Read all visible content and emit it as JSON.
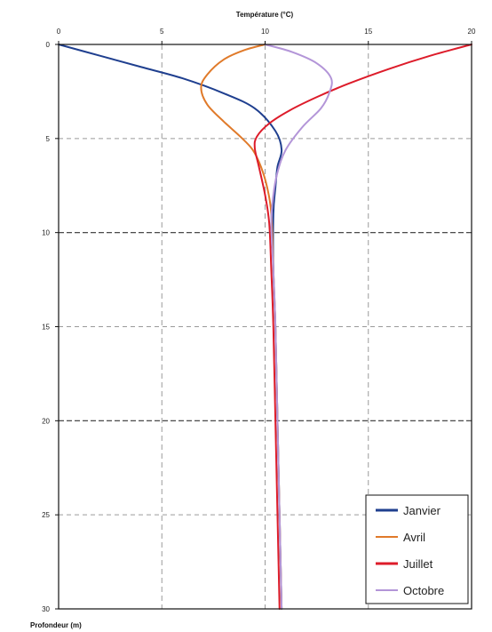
{
  "chart_data": {
    "type": "line",
    "xlabel": "Température (°C)",
    "ylabel": "Profondeur (m)",
    "xlim": [
      0,
      20
    ],
    "ylim": [
      0,
      30
    ],
    "y_inverted": true,
    "x_axis_position": "top",
    "x_ticks": [
      0,
      5,
      10,
      15,
      20
    ],
    "y_ticks": [
      0,
      5,
      10,
      15,
      20,
      25,
      30
    ],
    "grid": true,
    "legend_position": "bottom-right",
    "series": [
      {
        "name": "Janvier",
        "color": "#1f3f8f",
        "points": [
          [
            0,
            0
          ],
          [
            2,
            0.6
          ],
          [
            4,
            1.2
          ],
          [
            6,
            1.8
          ],
          [
            8,
            2.6
          ],
          [
            9.5,
            3.4
          ],
          [
            10.5,
            4.6
          ],
          [
            10.8,
            5.6
          ],
          [
            10.6,
            6.5
          ],
          [
            10.5,
            7.6
          ],
          [
            10.4,
            9
          ],
          [
            10.4,
            12
          ],
          [
            10.5,
            15
          ],
          [
            10.6,
            20
          ],
          [
            10.7,
            25
          ],
          [
            10.8,
            30
          ]
        ]
      },
      {
        "name": "Avril",
        "color": "#e07a2a",
        "points": [
          [
            10,
            0
          ],
          [
            9,
            0.3
          ],
          [
            8,
            0.8
          ],
          [
            7.2,
            1.6
          ],
          [
            6.9,
            2.3
          ],
          [
            7.2,
            3.2
          ],
          [
            8,
            4.1
          ],
          [
            8.8,
            4.9
          ],
          [
            9.4,
            5.6
          ],
          [
            9.8,
            6.5
          ],
          [
            10.1,
            7.6
          ],
          [
            10.3,
            9
          ],
          [
            10.4,
            12
          ],
          [
            10.5,
            15
          ],
          [
            10.6,
            20
          ],
          [
            10.7,
            25
          ],
          [
            10.8,
            30
          ]
        ]
      },
      {
        "name": "Juillet",
        "color": "#dd1c2a",
        "points": [
          [
            20,
            0
          ],
          [
            18,
            0.6
          ],
          [
            16,
            1.3
          ],
          [
            14,
            2.1
          ],
          [
            12.5,
            2.8
          ],
          [
            11.2,
            3.5
          ],
          [
            10.2,
            4.2
          ],
          [
            9.6,
            4.9
          ],
          [
            9.5,
            5.5
          ],
          [
            9.7,
            6.5
          ],
          [
            10,
            8
          ],
          [
            10.2,
            9.5
          ],
          [
            10.3,
            12
          ],
          [
            10.4,
            15
          ],
          [
            10.5,
            20
          ],
          [
            10.6,
            25
          ],
          [
            10.7,
            30
          ]
        ]
      },
      {
        "name": "Octobre",
        "color": "#b395d8",
        "points": [
          [
            10,
            0
          ],
          [
            11.3,
            0.4
          ],
          [
            12.5,
            1
          ],
          [
            13.2,
            1.8
          ],
          [
            13.1,
            2.6
          ],
          [
            12.7,
            3.4
          ],
          [
            11.8,
            4.4
          ],
          [
            11,
            5.6
          ],
          [
            10.6,
            6.8
          ],
          [
            10.4,
            8
          ],
          [
            10.3,
            9.5
          ],
          [
            10.4,
            12
          ],
          [
            10.5,
            15
          ],
          [
            10.6,
            20
          ],
          [
            10.7,
            25
          ],
          [
            10.8,
            30
          ]
        ]
      }
    ]
  }
}
